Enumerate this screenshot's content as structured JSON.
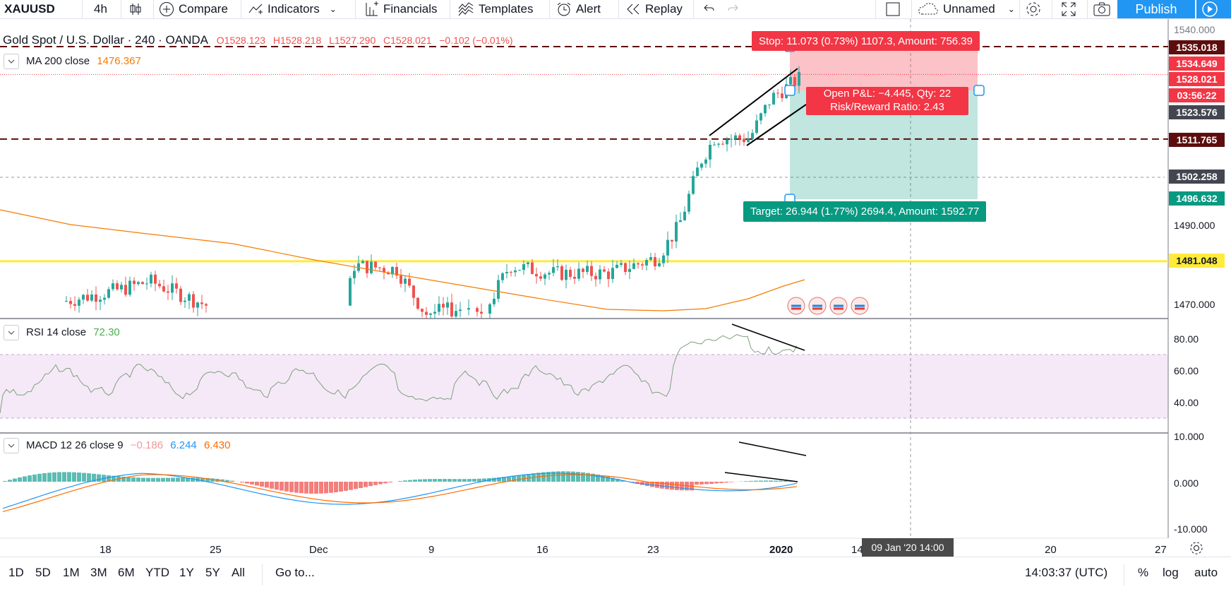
{
  "toolbar": {
    "symbol": "XAUUSD",
    "interval": "4h",
    "compare": "Compare",
    "indicators": "Indicators",
    "financials": "Financials",
    "templates": "Templates",
    "alert": "Alert",
    "replay": "Replay",
    "layout_name": "Unnamed",
    "publish": "Publish"
  },
  "main_legend": {
    "title": "Gold Spot / U.S. Dollar · 240 · OANDA",
    "open": "O1528.123",
    "high": "H1528.218",
    "low": "L1527.290",
    "close": "C1528.021",
    "change": "−0.102 (−0.01%)"
  },
  "ma_legend": {
    "label": "MA 200 close",
    "value": "1476.367"
  },
  "rsi_legend": {
    "label": "RSI 14 close",
    "value": "72.30"
  },
  "macd_legend": {
    "label": "MACD 12 26 close 9",
    "hist": "−0.186",
    "macd": "6.244",
    "signal": "6.430"
  },
  "position": {
    "stop": "Stop: 11.073 (0.73%) 1107.3, Amount: 756.39",
    "pnl": "Open P&L: −4.445, Qty: 22",
    "rr": "Risk/Reward Ratio: 2.43",
    "target": "Target: 26.944 (1.77%) 2694.4, Amount: 1592.77"
  },
  "price_axis": {
    "labels": [
      "1540.000",
      "1490.000",
      "1470.000"
    ],
    "tags": [
      {
        "text": "1535.018",
        "color": "#5d0d0d"
      },
      {
        "text": "1534.649",
        "color": "#f23645"
      },
      {
        "text": "1528.021",
        "color": "#f23645"
      },
      {
        "text": "03:56:22",
        "color": "#f23645"
      },
      {
        "text": "1523.576",
        "color": "#434651"
      },
      {
        "text": "1511.765",
        "color": "#5d0d0d"
      },
      {
        "text": "1502.258",
        "color": "#434651"
      },
      {
        "text": "1496.632",
        "color": "#089981"
      },
      {
        "text": "1481.048",
        "color": "#ffeb3b"
      }
    ]
  },
  "rsi_axis": [
    "80.00",
    "60.00",
    "40.00"
  ],
  "macd_axis": [
    "10.000",
    "0.000",
    "-10.000"
  ],
  "time_axis": [
    "18",
    "25",
    "Dec",
    "9",
    "16",
    "23",
    "2020",
    "14",
    "20",
    "27"
  ],
  "crosshair_time": "09 Jan '20   14:00",
  "bottom": {
    "ranges": [
      "1D",
      "5D",
      "1M",
      "3M",
      "6M",
      "YTD",
      "1Y",
      "5Y",
      "All"
    ],
    "goto": "Go to...",
    "clock": "14:03:37 (UTC)",
    "pct": "%",
    "log": "log",
    "auto": "auto"
  },
  "colors": {
    "up": "#26a69a",
    "down": "#ef5350",
    "ma": "#f57c00",
    "rsi": "#7e9f7e",
    "macd": "#2196f3",
    "signal": "#ff6d00"
  }
}
